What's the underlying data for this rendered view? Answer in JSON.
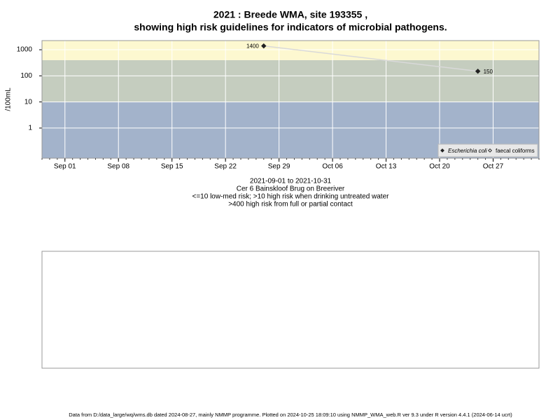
{
  "chart_data": {
    "type": "line",
    "title": "2021 : Breede WMA, site 193355 ,",
    "subtitle": "showing high risk guidelines for indicators of microbial pathogens.",
    "ylabel": "/100mL",
    "log_y": true,
    "grid": true,
    "legend": "lower right",
    "line_color": "#d9d9d9",
    "x": [
      "2021-09-27",
      "2021-10-25"
    ],
    "series": [
      {
        "name": "Escherichia coli",
        "color": "#222222",
        "marker": "filled-diamond",
        "values": [
          1400,
          150
        ]
      },
      {
        "name": "faecal coliforms",
        "color": "#222222",
        "marker": "open-diamond",
        "values": [
          null,
          null
        ]
      }
    ],
    "guidelines": [
      10,
      400
    ],
    "band_colors": [
      "#a3b3cb",
      "#c5cdbf",
      "#fdf8d0"
    ],
    "ylim": [
      0.07,
      2240
    ],
    "yticks": [
      1,
      10,
      100,
      1000
    ],
    "xlim": [
      "2021-08-29",
      "2021-11-02"
    ],
    "xticks": [
      {
        "value": "2021-09-01",
        "label": "Sep 01"
      },
      {
        "value": "2021-09-08",
        "label": "Sep 08"
      },
      {
        "value": "2021-09-15",
        "label": "Sep 15"
      },
      {
        "value": "2021-09-22",
        "label": "Sep 22"
      },
      {
        "value": "2021-09-29",
        "label": "Sep 29"
      },
      {
        "value": "2021-10-06",
        "label": "Oct 06"
      },
      {
        "value": "2021-10-13",
        "label": "Oct 13"
      },
      {
        "value": "2021-10-20",
        "label": "Oct 20"
      },
      {
        "value": "2021-10-27",
        "label": "Oct 27"
      }
    ],
    "captions": [
      "2021-09-01 to 2021-10-31",
      "Cer 6 Bainskloof Brug on Breeriver",
      "<=10 low-med risk; >10 high risk when drinking untreated water",
      ">400 high risk from full or partial contact"
    ],
    "footer": "Data from D:/data_large/wq/wms.db dated 2024-08-27, mainly NMMP programme. Plotted on 2024-10-25 18:09:10 using NMMP_WMA_web.R ver 9.3 under R version 4.4.1 (2024-06-14 ucrt)"
  }
}
